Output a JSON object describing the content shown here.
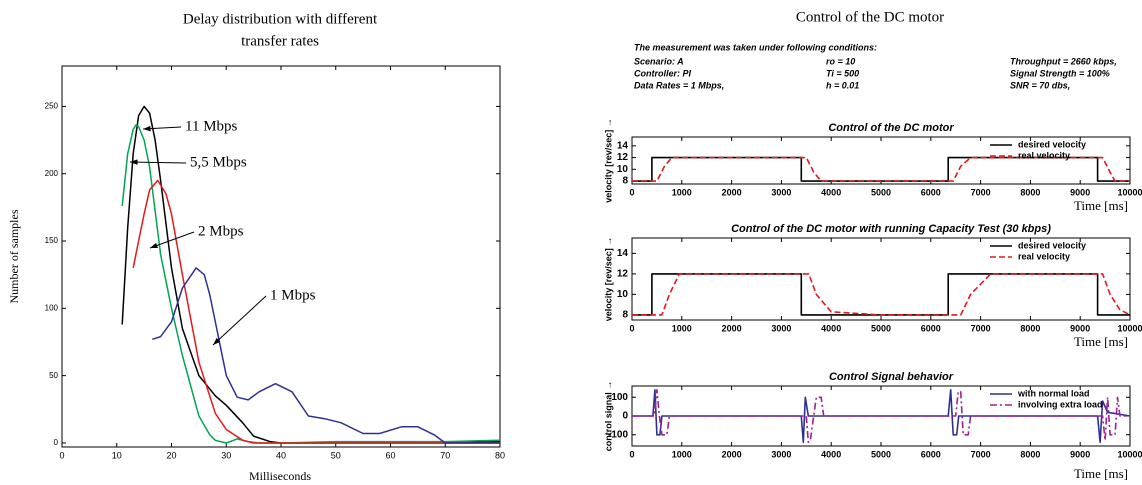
{
  "panel": {
    "title": "Control of the DC motor",
    "conditions_heading": "The measurement was taken under following conditions:",
    "conditions": [
      [
        "Scenario: A",
        "ro = 10",
        "Throughput = 2660 kbps,"
      ],
      [
        "Controller: PI",
        "Ti = 500",
        "Signal Strength = 100%"
      ],
      [
        "Data Rates = 1 Mbps,",
        "h = 0.01",
        "SNR = 70 dbs,"
      ]
    ]
  },
  "chart_data": [
    {
      "type": "line",
      "title": "Delay distribution with different transfer rates",
      "title_lines": [
        "Delay distribution with different",
        "transfer rates"
      ],
      "x_label": "Milliseconds",
      "y_label": "Number of samples",
      "xlim": [
        0,
        80
      ],
      "xticks": [
        0,
        10,
        20,
        30,
        40,
        50,
        60,
        70,
        80
      ],
      "ylim": [
        -3,
        280
      ],
      "yticks": [
        0,
        50,
        100,
        150,
        200,
        250
      ],
      "series": [
        {
          "color": "#000000",
          "style": "solid",
          "x": [
            11,
            12,
            13,
            14,
            15,
            16,
            17,
            18,
            20,
            22,
            25,
            28,
            30,
            33,
            35,
            38,
            40,
            50,
            60,
            70,
            80
          ],
          "values": [
            88,
            160,
            215,
            243,
            250,
            245,
            225,
            195,
            130,
            85,
            50,
            35,
            28,
            15,
            5,
            1,
            0,
            0,
            0,
            0,
            1
          ]
        },
        {
          "color": "#00a651",
          "style": "solid",
          "x": [
            11,
            12,
            13,
            13.5,
            14,
            15,
            16,
            18,
            20,
            22,
            25,
            27,
            28,
            30,
            32,
            34,
            36,
            40,
            50,
            60,
            70,
            80
          ],
          "values": [
            176,
            215,
            233,
            236,
            235,
            225,
            205,
            140,
            100,
            65,
            20,
            6,
            2,
            0,
            3,
            1,
            0,
            0,
            1,
            1,
            1,
            2
          ]
        },
        {
          "color": "#e3191c",
          "style": "solid",
          "x": [
            13,
            14,
            15,
            16,
            17.5,
            19,
            20,
            22,
            25,
            28,
            30,
            33,
            35,
            40,
            50,
            60,
            70,
            80
          ],
          "values": [
            130,
            150,
            170,
            188,
            195,
            185,
            170,
            125,
            60,
            22,
            10,
            2,
            0,
            0,
            0,
            0,
            0,
            0
          ]
        },
        {
          "color": "#2e3192",
          "style": "solid",
          "x": [
            16.5,
            18,
            20,
            22,
            24.5,
            26,
            27,
            29,
            30,
            32,
            34,
            36,
            39,
            42,
            45,
            48,
            51,
            55,
            58,
            62,
            65,
            68,
            70,
            75,
            80
          ],
          "values": [
            77,
            79,
            90,
            115,
            130,
            125,
            110,
            70,
            50,
            34,
            32,
            38,
            44,
            38,
            20,
            18,
            15,
            7,
            7,
            12,
            12,
            6,
            0,
            0,
            0
          ]
        }
      ],
      "annotations": [
        {
          "text": "11 Mbps"
        },
        {
          "text": "5,5 Mbps"
        },
        {
          "text": "2 Mbps"
        },
        {
          "text": "1 Mbps"
        }
      ]
    },
    {
      "type": "line",
      "title": "Control of the DC motor",
      "x_label": "Time [ms]",
      "y_label": "velocity [rev/sec] →",
      "xlim": [
        0,
        10000
      ],
      "xticks": [
        0,
        1000,
        2000,
        3000,
        4000,
        5000,
        6000,
        7000,
        8000,
        9000,
        10000
      ],
      "ylim": [
        7.5,
        15.5
      ],
      "yticks": [
        8,
        10,
        12,
        14
      ],
      "legend": "upper right",
      "series": [
        {
          "name": "desired velocity",
          "color": "#000000",
          "style": "solid",
          "x": [
            0,
            400,
            400,
            3400,
            3400,
            6350,
            6350,
            9350,
            9350,
            10000
          ],
          "values": [
            8,
            8,
            12,
            12,
            8,
            8,
            12,
            12,
            8,
            8
          ]
        },
        {
          "name": "real velocity",
          "color": "#e3191c",
          "style": "dashed",
          "x": [
            0,
            500,
            650,
            800,
            3500,
            3650,
            3800,
            6450,
            6600,
            6800,
            9450,
            9600,
            9700,
            10000
          ],
          "values": [
            8,
            8,
            10.5,
            12,
            12,
            9.5,
            8,
            8,
            10.5,
            12,
            12,
            9.5,
            8,
            8
          ]
        }
      ]
    },
    {
      "type": "line",
      "title": "Control of the DC motor with running Capacity Test (30 kbps)",
      "x_label": "Time [ms]",
      "y_label": "velocity [rev/sec] →",
      "xlim": [
        0,
        10000
      ],
      "xticks": [
        0,
        1000,
        2000,
        3000,
        4000,
        5000,
        6000,
        7000,
        8000,
        9000,
        10000
      ],
      "ylim": [
        7.5,
        15.5
      ],
      "yticks": [
        8,
        10,
        12,
        14
      ],
      "legend": "upper right",
      "series": [
        {
          "name": "desired velocity",
          "color": "#000000",
          "style": "solid",
          "x": [
            0,
            400,
            400,
            3400,
            3400,
            6350,
            6350,
            9350,
            9350,
            10000
          ],
          "values": [
            8,
            8,
            12,
            12,
            8,
            8,
            12,
            12,
            8,
            8
          ]
        },
        {
          "name": "real velocity",
          "color": "#e3191c",
          "style": "dashed",
          "x": [
            0,
            600,
            750,
            950,
            3550,
            3700,
            4000,
            5000,
            6600,
            6800,
            7200,
            9450,
            9600,
            9800,
            10000
          ],
          "values": [
            8,
            8,
            10,
            12,
            12,
            10,
            8.3,
            8,
            8,
            10,
            12,
            12,
            10,
            8.5,
            8
          ]
        }
      ]
    },
    {
      "type": "line",
      "title": "Control Signal behavior",
      "x_label": "Time [ms]",
      "y_label": "control signal →",
      "xlim": [
        0,
        10000
      ],
      "xticks": [
        0,
        1000,
        2000,
        3000,
        4000,
        5000,
        6000,
        7000,
        8000,
        9000,
        10000
      ],
      "ylim": [
        -160,
        160
      ],
      "yticks": [
        -100,
        0,
        100
      ],
      "legend": "upper right",
      "series": [
        {
          "name": "with normal load",
          "color": "#2e3192",
          "style": "solid",
          "x": [
            0,
            420,
            460,
            500,
            560,
            600,
            3400,
            3440,
            3480,
            3540,
            6350,
            6400,
            6450,
            6520,
            6560,
            9350,
            9400,
            9450,
            9550,
            10000
          ],
          "values": [
            0,
            0,
            140,
            -100,
            -100,
            0,
            0,
            -140,
            100,
            0,
            0,
            140,
            -100,
            -100,
            0,
            0,
            -140,
            80,
            20,
            0
          ]
        },
        {
          "name": "involving extra load",
          "color": "#a0208f",
          "style": "dashdot",
          "x": [
            0,
            450,
            500,
            550,
            600,
            700,
            750,
            3500,
            3540,
            3580,
            3700,
            3800,
            3850,
            6500,
            6550,
            6600,
            6650,
            6750,
            6800,
            9450,
            9500,
            9550,
            9600,
            9700,
            9750,
            9800,
            10000
          ],
          "values": [
            0,
            0,
            140,
            0,
            -100,
            -100,
            0,
            0,
            -140,
            -130,
            100,
            100,
            0,
            0,
            130,
            130,
            -100,
            -100,
            0,
            0,
            -130,
            100,
            -100,
            -100,
            100,
            0,
            0
          ]
        }
      ]
    }
  ]
}
